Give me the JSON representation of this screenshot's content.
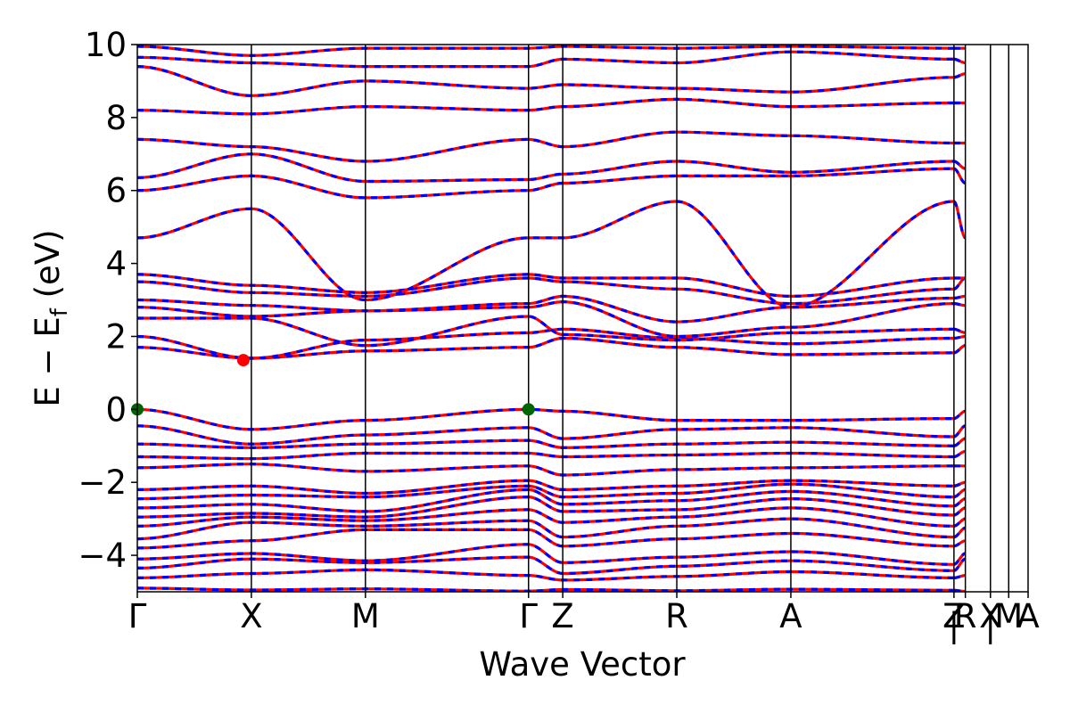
{
  "chart_data": {
    "type": "line",
    "title": "",
    "xlabel": "Wave Vector",
    "ylabel_parts": {
      "lead": "E − E",
      "subscript": "f",
      "unit": " (eV)"
    },
    "ylim": [
      -5,
      10
    ],
    "yticks": [
      -4,
      -2,
      0,
      2,
      4,
      6,
      8,
      10
    ],
    "ytick_labels": [
      "−4",
      "−2",
      "0",
      "2",
      "4",
      "6",
      "8",
      "10"
    ],
    "grid": false,
    "legend": "none",
    "xlim": [
      0,
      7.81
    ],
    "high_symmetry_points": [
      {
        "label": "Γ",
        "x": 0.0
      },
      {
        "label": "X",
        "x": 1.0
      },
      {
        "label": "M",
        "x": 2.0
      },
      {
        "label": "Γ",
        "x": 3.43
      },
      {
        "label": "Z",
        "x": 3.73
      },
      {
        "label": "R",
        "x": 4.73
      },
      {
        "label": "A",
        "x": 5.73
      },
      {
        "label": "Z",
        "x": 7.16
      },
      {
        "label": "|",
        "x": 7.16
      },
      {
        "label": "R",
        "x": 7.26
      },
      {
        "label": "X",
        "x": 7.48
      },
      {
        "label": "|",
        "x": 7.48
      },
      {
        "label": "M",
        "x": 7.64
      },
      {
        "label": "A",
        "x": 7.81
      }
    ],
    "segment_breaks": [
      7.16,
      7.48
    ],
    "series": [
      {
        "color": "#ff0000",
        "style": "solid",
        "width": 3.2
      },
      {
        "color": "#0000ff",
        "style": "dashed",
        "width": 3.2
      }
    ],
    "markers": [
      {
        "role": "VBM",
        "x": 0.0,
        "y": 0.0,
        "color": "#006400"
      },
      {
        "role": "VBM",
        "x": 3.43,
        "y": 0.0,
        "color": "#006400"
      },
      {
        "role": "CBM",
        "x": 0.93,
        "y": 1.35,
        "color": "#ff0000"
      }
    ],
    "bands": [
      [
        -4.9,
        -4.95,
        -4.92,
        -4.98,
        -4.94,
        -4.97,
        -4.93,
        -4.96,
        -4.99
      ],
      [
        -4.62,
        -4.5,
        -4.4,
        -4.55,
        -4.68,
        -4.58,
        -4.45,
        -4.62,
        -4.55
      ],
      [
        -4.35,
        -4.1,
        -4.2,
        -4.05,
        -4.5,
        -4.3,
        -4.15,
        -4.42,
        -4.1
      ],
      [
        -4.1,
        -3.95,
        -4.15,
        -3.7,
        -4.2,
        -4.05,
        -3.9,
        -4.25,
        -3.95
      ],
      [
        -3.8,
        -3.6,
        -3.3,
        -3.3,
        -3.75,
        -3.55,
        -3.4,
        -3.75,
        -3.6
      ],
      [
        -3.55,
        -3.1,
        -3.2,
        -3.05,
        -3.5,
        -3.2,
        -3.0,
        -3.5,
        -3.25
      ],
      [
        -3.2,
        -2.95,
        -3.05,
        -2.75,
        -3.1,
        -2.95,
        -2.7,
        -3.2,
        -3.0
      ],
      [
        -2.95,
        -2.85,
        -2.95,
        -2.4,
        -2.8,
        -2.75,
        -2.45,
        -2.9,
        -2.7
      ],
      [
        -2.7,
        -2.6,
        -2.8,
        -2.2,
        -2.6,
        -2.5,
        -2.25,
        -2.65,
        -2.45
      ],
      [
        -2.45,
        -2.35,
        -2.4,
        -2.1,
        -2.4,
        -2.3,
        -2.05,
        -2.4,
        -2.2
      ],
      [
        -2.2,
        -2.1,
        -2.3,
        -1.95,
        -2.2,
        -2.1,
        -1.95,
        -2.1,
        -2.0
      ],
      [
        -1.6,
        -1.5,
        -1.7,
        -1.55,
        -1.8,
        -1.65,
        -1.6,
        -1.55,
        -1.55
      ],
      [
        -1.3,
        -1.35,
        -1.2,
        -1.2,
        -1.3,
        -1.25,
        -1.2,
        -1.3,
        -1.15
      ],
      [
        -0.95,
        -1.05,
        -0.95,
        -0.85,
        -1.05,
        -0.95,
        -0.9,
        -1.0,
        -0.8
      ],
      [
        -0.45,
        -0.95,
        -0.7,
        -0.5,
        -0.8,
        -0.55,
        -0.5,
        -0.75,
        -0.45
      ],
      [
        0.0,
        -0.55,
        -0.3,
        0.0,
        -0.05,
        -0.3,
        -0.3,
        -0.25,
        -0.05
      ],
      [
        1.7,
        1.4,
        1.6,
        1.7,
        1.95,
        1.7,
        1.5,
        1.55,
        1.75
      ],
      [
        2.0,
        1.4,
        1.9,
        2.1,
        2.2,
        1.95,
        1.8,
        1.95,
        2.0
      ],
      [
        2.5,
        2.5,
        1.75,
        2.55,
        2.05,
        1.9,
        2.1,
        2.2,
        2.1
      ],
      [
        2.8,
        2.55,
        2.7,
        2.8,
        2.95,
        2.0,
        2.25,
        2.9,
        2.85
      ],
      [
        3.0,
        2.85,
        2.7,
        2.9,
        3.1,
        2.4,
        2.8,
        3.05,
        3.1
      ],
      [
        3.5,
        3.2,
        3.1,
        3.6,
        3.5,
        3.3,
        2.9,
        3.3,
        3.6
      ],
      [
        3.7,
        3.4,
        3.2,
        3.7,
        3.6,
        3.6,
        3.1,
        3.6,
        3.6
      ],
      [
        4.7,
        5.5,
        3.0,
        4.7,
        4.7,
        5.7,
        2.8,
        5.7,
        4.7
      ],
      [
        6.0,
        6.4,
        5.8,
        6.0,
        6.2,
        6.4,
        6.4,
        6.6,
        6.2
      ],
      [
        6.35,
        7.0,
        6.25,
        6.3,
        6.45,
        6.8,
        6.5,
        6.8,
        6.6
      ],
      [
        7.4,
        7.2,
        6.8,
        7.4,
        7.2,
        7.6,
        7.5,
        7.3,
        7.3
      ],
      [
        8.2,
        8.1,
        8.3,
        8.2,
        8.3,
        8.5,
        8.3,
        8.4,
        8.4
      ],
      [
        9.4,
        8.6,
        9.0,
        8.8,
        8.9,
        8.8,
        8.7,
        9.1,
        9.2
      ],
      [
        9.65,
        9.5,
        9.4,
        9.4,
        9.6,
        9.5,
        9.8,
        9.6,
        9.5
      ],
      [
        9.95,
        9.7,
        9.9,
        9.9,
        9.95,
        9.9,
        9.95,
        9.9,
        9.9
      ]
    ]
  }
}
